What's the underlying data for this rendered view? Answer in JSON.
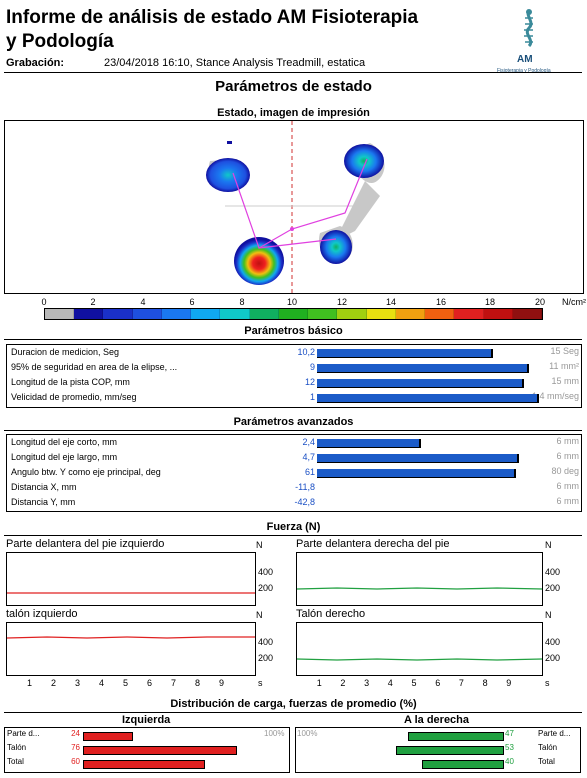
{
  "header": {
    "title": "Informe de análisis de estado AM Fisioterapia y Podología",
    "recording_label": "Grabación:",
    "recording_value": "23/04/2018 16:10, Stance Analysis Treadmill, estatica",
    "logo_text": "AM",
    "logo_subtext": "Fisioterapia y Podología"
  },
  "parameters_title": "Parámetros de estado",
  "impression_title": "Estado, imagen de impresión",
  "color_scale": {
    "ticks": [
      "0",
      "2",
      "4",
      "6",
      "8",
      "10",
      "12",
      "14",
      "16",
      "18",
      "20"
    ],
    "unit": "N/cm²",
    "colors": [
      "#b8b8b8",
      "#1010a0",
      "#1a30c8",
      "#1e50e0",
      "#1a78f0",
      "#10a8f0",
      "#10c8c8",
      "#10b060",
      "#20b020",
      "#40c020",
      "#a0d010",
      "#e8e010",
      "#f0a010",
      "#f06010",
      "#e02020",
      "#c01010",
      "#901010"
    ]
  },
  "basic": {
    "title": "Parámetros básico",
    "rows": [
      {
        "label": "Duracion de medicion, Seg",
        "value": "10,2",
        "fraction": 0.68,
        "unit": "15 Seg"
      },
      {
        "label": "95% de seguridad en area de la elipse, ...",
        "value": "9",
        "fraction": 0.82,
        "unit": "11 mm²"
      },
      {
        "label": "Longitud de la pista COP, mm",
        "value": "12",
        "fraction": 0.8,
        "unit": "15 mm"
      },
      {
        "label": "Velicidad de promedio, mm/seg",
        "value": "1",
        "fraction": 0.86,
        "unit": "1,4 mm/seg"
      }
    ]
  },
  "advanced": {
    "title": "Parámetros avanzados",
    "rows": [
      {
        "label": "Longitud del eje corto, mm",
        "value": "2,4",
        "fraction": 0.4,
        "unit": "6 mm"
      },
      {
        "label": "Longitud del eje largo, mm",
        "value": "4,7",
        "fraction": 0.78,
        "unit": "6 mm"
      },
      {
        "label": "Angulo btw. Y como eje principal, deg",
        "value": "61",
        "fraction": 0.77,
        "unit": "80 deg"
      },
      {
        "label": "Distancia X, mm",
        "value": "-11,8",
        "fraction": 0,
        "unit": "6 mm"
      },
      {
        "label": "Distancia Y, mm",
        "value": "-42,8",
        "fraction": 0,
        "unit": "6 mm"
      }
    ]
  },
  "force": {
    "title": "Fuerza (N)",
    "unit": "N",
    "panels": [
      {
        "title": "Parte delantera del pie izquierdo",
        "ticks": [
          "400",
          "200"
        ],
        "color": "#e02020",
        "level": 145
      },
      {
        "title": "Parte delantera derecha del pie",
        "ticks": [
          "400",
          "200"
        ],
        "color": "#20a040",
        "level": 185
      },
      {
        "title": "talón izquierdo",
        "ticks": [
          "400",
          "200"
        ],
        "color": "#e02020",
        "level": 440
      },
      {
        "title": "Talón derecho",
        "ticks": [
          "400",
          "200"
        ],
        "color": "#20a040",
        "level": 200
      }
    ],
    "x_ticks": [
      "1",
      "2",
      "3",
      "4",
      "5",
      "6",
      "7",
      "8",
      "9"
    ],
    "x_unit": "s"
  },
  "distribution": {
    "title": "Distribución de carga, fuerzas de promedio (%)",
    "left_head": "Izquierda",
    "right_head": "A la derecha",
    "scale_label": "100%",
    "left": [
      {
        "label": "Parte d...",
        "value": "24",
        "fraction": 0.24
      },
      {
        "label": "Talón",
        "value": "76",
        "fraction": 0.76
      },
      {
        "label": "Total",
        "value": "60",
        "fraction": 0.6
      }
    ],
    "right": [
      {
        "label": "Parte d...",
        "value": "47",
        "fraction": 0.47
      },
      {
        "label": "Talón",
        "value": "53",
        "fraction": 0.53
      },
      {
        "label": "Total",
        "value": "40",
        "fraction": 0.4
      }
    ],
    "left_color": "#e02020",
    "right_color": "#20a040"
  }
}
